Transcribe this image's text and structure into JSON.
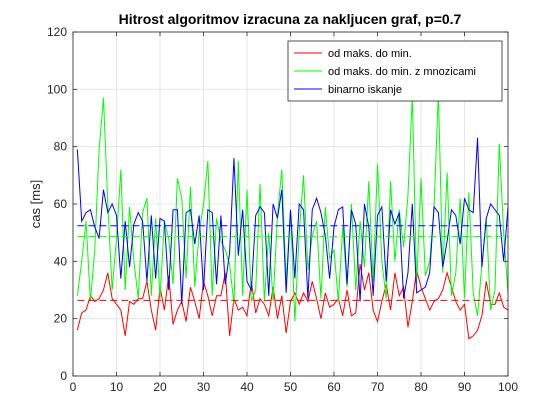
{
  "chart_data": {
    "type": "line",
    "title": "Hitrost algoritmov izracuna za nakljucen graf, p=0.7",
    "xlabel": "",
    "ylabel": "cas [ms]",
    "xlim": [
      0,
      100
    ],
    "ylim": [
      0,
      120
    ],
    "xticks": [
      0,
      10,
      20,
      30,
      40,
      50,
      60,
      70,
      80,
      90,
      100
    ],
    "yticks": [
      0,
      20,
      40,
      60,
      80,
      100,
      120
    ],
    "grid": true,
    "legend_position": "top-right",
    "series": [
      {
        "name": "od maks. do min.",
        "color": "#ff0000",
        "style": "solid",
        "x": [
          1,
          2,
          3,
          4,
          5,
          6,
          7,
          8,
          9,
          10,
          11,
          12,
          13,
          14,
          15,
          16,
          17,
          18,
          19,
          20,
          21,
          22,
          23,
          24,
          25,
          26,
          27,
          28,
          29,
          30,
          31,
          32,
          33,
          34,
          35,
          36,
          37,
          38,
          39,
          40,
          41,
          42,
          43,
          44,
          45,
          46,
          47,
          48,
          49,
          50,
          51,
          52,
          53,
          54,
          55,
          56,
          57,
          58,
          59,
          60,
          61,
          62,
          63,
          64,
          65,
          66,
          67,
          68,
          69,
          70,
          71,
          72,
          73,
          74,
          75,
          76,
          77,
          78,
          79,
          80,
          81,
          82,
          83,
          84,
          85,
          86,
          87,
          88,
          89,
          90,
          91,
          92,
          93,
          94,
          95,
          96,
          97,
          98,
          99,
          100
        ],
        "y": [
          16,
          22,
          23,
          28,
          26,
          27,
          30,
          36,
          27,
          25,
          23,
          14,
          26,
          25,
          27,
          27,
          33,
          23,
          16,
          31,
          23,
          35,
          18,
          23,
          26,
          19,
          31,
          26,
          20,
          33,
          28,
          21,
          28,
          28,
          36,
          14,
          27,
          23,
          24,
          21,
          33,
          22,
          27,
          25,
          21,
          31,
          20,
          28,
          15,
          26,
          29,
          25,
          29,
          26,
          33,
          27,
          20,
          29,
          24,
          25,
          27,
          21,
          30,
          21,
          22,
          39,
          30,
          36,
          23,
          19,
          26,
          32,
          23,
          36,
          28,
          31,
          17,
          26,
          37,
          31,
          27,
          23,
          26,
          27,
          30,
          36,
          31,
          26,
          23,
          25,
          13,
          14,
          16,
          21,
          33,
          25,
          25,
          29,
          24,
          23
        ]
      },
      {
        "name": "od maks. do min. z mnozicami",
        "color": "#00ff00",
        "style": "solid",
        "x": [
          1,
          2,
          3,
          4,
          5,
          6,
          7,
          8,
          9,
          10,
          11,
          12,
          13,
          14,
          15,
          16,
          17,
          18,
          19,
          20,
          21,
          22,
          23,
          24,
          25,
          26,
          27,
          28,
          29,
          30,
          31,
          32,
          33,
          34,
          35,
          36,
          37,
          38,
          39,
          40,
          41,
          42,
          43,
          44,
          45,
          46,
          47,
          48,
          49,
          50,
          51,
          52,
          53,
          54,
          55,
          56,
          57,
          58,
          59,
          60,
          61,
          62,
          63,
          64,
          65,
          66,
          67,
          68,
          69,
          70,
          71,
          72,
          73,
          74,
          75,
          76,
          77,
          78,
          79,
          80,
          81,
          82,
          83,
          84,
          85,
          86,
          87,
          88,
          89,
          90,
          91,
          92,
          93,
          94,
          95,
          96,
          97,
          98,
          99,
          100
        ],
        "y": [
          28,
          40,
          54,
          26,
          44,
          79,
          97,
          60,
          30,
          48,
          72,
          30,
          59,
          40,
          27,
          57,
          62,
          28,
          55,
          27,
          54,
          48,
          32,
          69,
          62,
          34,
          66,
          31,
          50,
          60,
          75,
          28,
          55,
          47,
          44,
          39,
          25,
          75,
          28,
          65,
          26,
          30,
          67,
          26,
          50,
          26,
          56,
          72,
          33,
          58,
          19,
          50,
          70,
          37,
          49,
          54,
          27,
          59,
          41,
          44,
          26,
          52,
          31,
          60,
          30,
          54,
          38,
          68,
          33,
          74,
          40,
          27,
          68,
          40,
          58,
          45,
          63,
          98,
          32,
          69,
          35,
          40,
          59,
          99,
          36,
          71,
          28,
          36,
          62,
          27,
          64,
          29,
          21,
          39,
          55,
          23,
          30,
          81,
          50,
          29
        ]
      },
      {
        "name": "binarno iskanje",
        "color": "#0000ff",
        "style": "solid",
        "x": [
          1,
          2,
          3,
          4,
          5,
          6,
          7,
          8,
          9,
          10,
          11,
          12,
          13,
          14,
          15,
          16,
          17,
          18,
          19,
          20,
          21,
          22,
          23,
          24,
          25,
          26,
          27,
          28,
          29,
          30,
          31,
          32,
          33,
          34,
          35,
          36,
          37,
          38,
          39,
          40,
          41,
          42,
          43,
          44,
          45,
          46,
          47,
          48,
          49,
          50,
          51,
          52,
          53,
          54,
          55,
          56,
          57,
          58,
          59,
          60,
          61,
          62,
          63,
          64,
          65,
          66,
          67,
          68,
          69,
          70,
          71,
          72,
          73,
          74,
          75,
          76,
          77,
          78,
          79,
          80,
          81,
          82,
          83,
          84,
          85,
          86,
          87,
          88,
          89,
          90,
          91,
          92,
          93,
          94,
          95,
          96,
          97,
          98,
          99,
          100
        ],
        "y": [
          79,
          54,
          57,
          58,
          52,
          48,
          65,
          57,
          60,
          56,
          34,
          54,
          38,
          53,
          57,
          54,
          33,
          56,
          34,
          55,
          54,
          30,
          58,
          58,
          25,
          57,
          58,
          46,
          56,
          30,
          58,
          57,
          32,
          56,
          32,
          43,
          76,
          42,
          58,
          33,
          30,
          56,
          59,
          57,
          28,
          60,
          55,
          65,
          29,
          58,
          34,
          60,
          58,
          27,
          58,
          62,
          57,
          49,
          34,
          52,
          58,
          59,
          32,
          58,
          53,
          26,
          60,
          52,
          28,
          56,
          59,
          33,
          58,
          53,
          57,
          27,
          36,
          60,
          29,
          30,
          31,
          36,
          59,
          57,
          38,
          47,
          58,
          56,
          46,
          62,
          58,
          57,
          83,
          38,
          55,
          60,
          58,
          56,
          40,
          59
        ]
      },
      {
        "name": "",
        "color": "#ff0000",
        "style": "dashed",
        "x": [
          1,
          100
        ],
        "y": [
          26.4,
          26.4
        ]
      },
      {
        "name": "",
        "color": "#00ff00",
        "style": "dashed",
        "x": [
          1,
          100
        ],
        "y": [
          48.6,
          48.6
        ]
      },
      {
        "name": "",
        "color": "#0000ff",
        "style": "dashed",
        "x": [
          1,
          100
        ],
        "y": [
          52.4,
          52.4
        ]
      }
    ]
  }
}
